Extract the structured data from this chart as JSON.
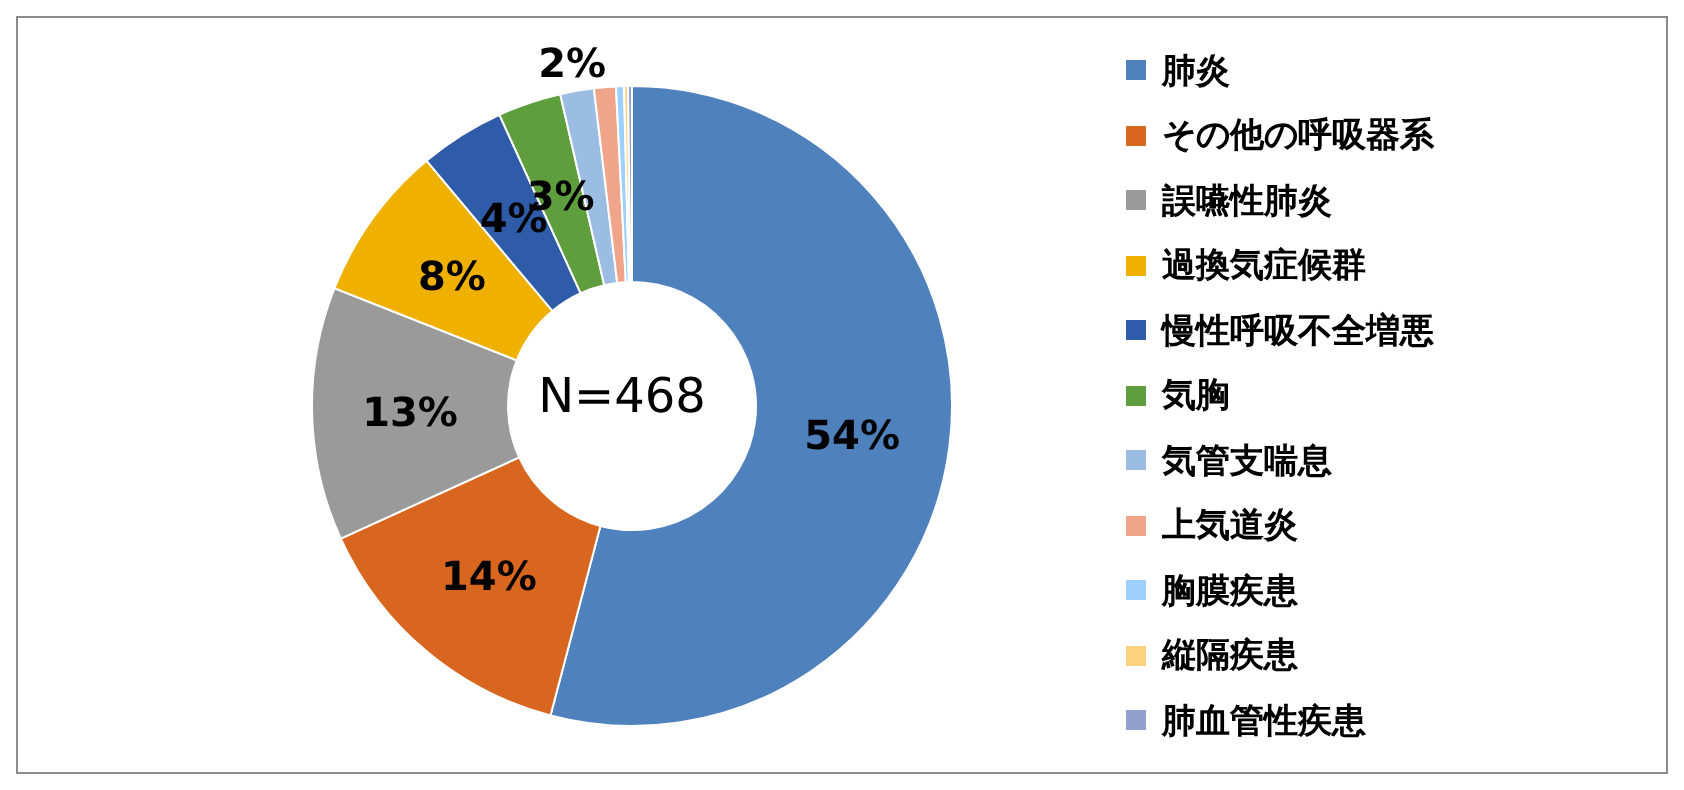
{
  "chart_data": {
    "type": "donut",
    "categories": [
      "肺炎",
      "その他の呼吸器系",
      "誤嚥性肺炎",
      "過換気症候群",
      "慢性呼吸不全増悪",
      "気胸",
      "気管支喘息",
      "上気道炎",
      "胸膜疾患",
      "縦隔疾患",
      "肺血管性疾患"
    ],
    "values": [
      54.1,
      14.1,
      12.8,
      7.9,
      4.3,
      3.2,
      1.7,
      1.1,
      0.4,
      0.2,
      0.2
    ],
    "value_labels": [
      "54%",
      "14%",
      "13%",
      "8%",
      "4%",
      "3%",
      "2%",
      null,
      null,
      null,
      null
    ],
    "colors": [
      "#4f81bd",
      "#d9661e",
      "#9a9a9a",
      "#f0b000",
      "#2f5ca8",
      "#5f9e3c",
      "#9cbde3",
      "#f0a48a",
      "#9dcfff",
      "#ffd27f",
      "#8fa0d0"
    ],
    "annotations": [
      "N=468"
    ],
    "legend": "right"
  }
}
